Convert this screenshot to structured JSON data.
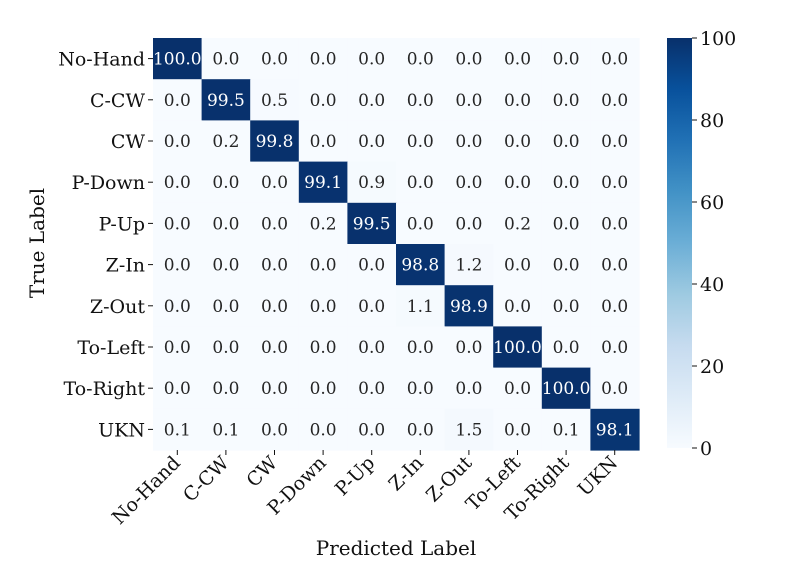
{
  "chart_data": {
    "type": "heatmap",
    "title": "",
    "xlabel": "Predicted Label",
    "ylabel": "True Label",
    "x_categories": [
      "No-Hand",
      "C-CW",
      "CW",
      "P-Down",
      "P-Up",
      "Z-In",
      "Z-Out",
      "To-Left",
      "To-Right",
      "UKN"
    ],
    "y_categories": [
      "No-Hand",
      "C-CW",
      "CW",
      "P-Down",
      "P-Up",
      "Z-In",
      "Z-Out",
      "To-Left",
      "To-Right",
      "UKN"
    ],
    "values": [
      [
        100.0,
        0.0,
        0.0,
        0.0,
        0.0,
        0.0,
        0.0,
        0.0,
        0.0,
        0.0
      ],
      [
        0.0,
        99.5,
        0.5,
        0.0,
        0.0,
        0.0,
        0.0,
        0.0,
        0.0,
        0.0
      ],
      [
        0.0,
        0.2,
        99.8,
        0.0,
        0.0,
        0.0,
        0.0,
        0.0,
        0.0,
        0.0
      ],
      [
        0.0,
        0.0,
        0.0,
        99.1,
        0.9,
        0.0,
        0.0,
        0.0,
        0.0,
        0.0
      ],
      [
        0.0,
        0.0,
        0.0,
        0.2,
        99.5,
        0.0,
        0.0,
        0.2,
        0.0,
        0.0
      ],
      [
        0.0,
        0.0,
        0.0,
        0.0,
        0.0,
        98.8,
        1.2,
        0.0,
        0.0,
        0.0
      ],
      [
        0.0,
        0.0,
        0.0,
        0.0,
        0.0,
        1.1,
        98.9,
        0.0,
        0.0,
        0.0
      ],
      [
        0.0,
        0.0,
        0.0,
        0.0,
        0.0,
        0.0,
        0.0,
        100.0,
        0.0,
        0.0
      ],
      [
        0.0,
        0.0,
        0.0,
        0.0,
        0.0,
        0.0,
        0.0,
        0.0,
        100.0,
        0.0
      ],
      [
        0.1,
        0.1,
        0.0,
        0.0,
        0.0,
        0.0,
        1.5,
        0.0,
        0.1,
        98.1
      ]
    ],
    "value_format": "0.0",
    "colormap": "Blues",
    "colorbar": {
      "min": 0,
      "max": 100,
      "ticks": [
        0,
        20,
        40,
        60,
        80,
        100
      ]
    },
    "colors": {
      "low": "#f7fbff",
      "high": "#08306b"
    }
  }
}
